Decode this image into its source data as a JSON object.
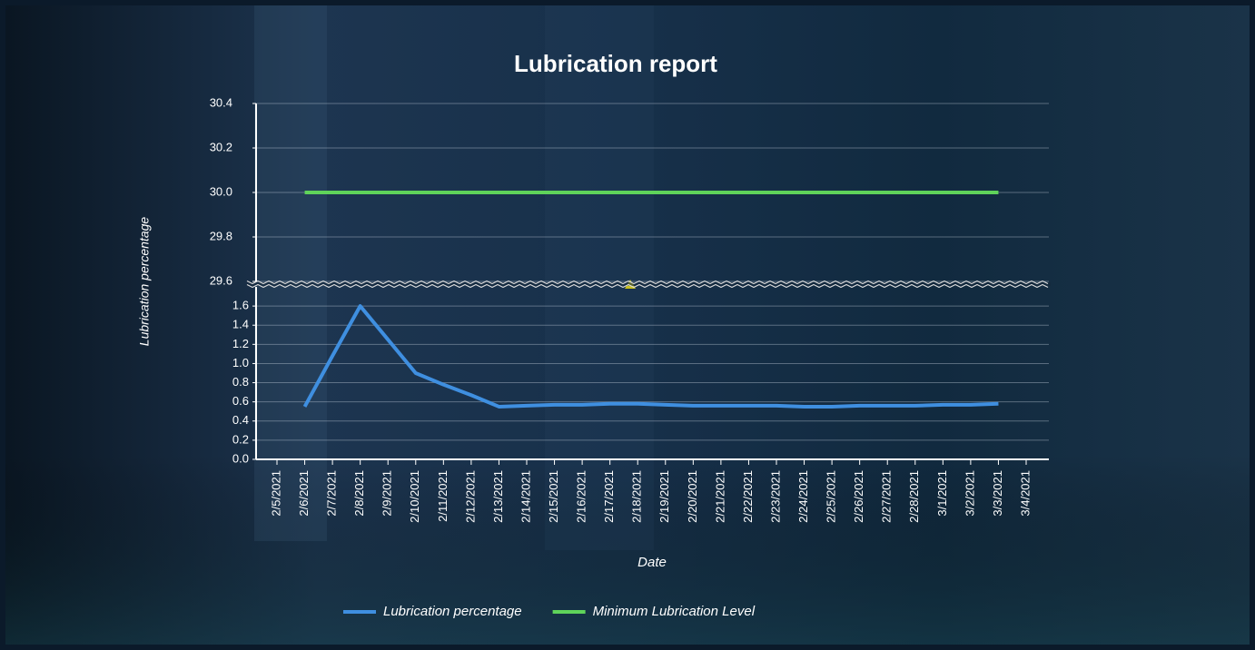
{
  "chart_data": {
    "type": "line",
    "title": "Lubrication report",
    "x_label": "Date",
    "y_label": "Lubrication percentage",
    "categories": [
      "2/5/2021",
      "2/6/2021",
      "2/7/2021",
      "2/8/2021",
      "2/9/2021",
      "2/10/2021",
      "2/11/2021",
      "2/12/2021",
      "2/13/2021",
      "2/14/2021",
      "2/15/2021",
      "2/16/2021",
      "2/17/2021",
      "2/18/2021",
      "2/19/2021",
      "2/20/2021",
      "2/21/2021",
      "2/22/2021",
      "2/23/2021",
      "2/24/2021",
      "2/25/2021",
      "2/26/2021",
      "2/27/2021",
      "2/28/2021",
      "3/1/2021",
      "3/2/2021",
      "3/3/2021",
      "3/4/2021"
    ],
    "series": [
      {
        "name": "Lubrication percentage",
        "color": "#3f8fe0",
        "values": [
          null,
          0.55,
          1.08,
          1.6,
          1.25,
          0.9,
          0.78,
          0.67,
          0.55,
          0.56,
          0.57,
          0.57,
          0.58,
          0.58,
          0.57,
          0.56,
          0.56,
          0.56,
          0.56,
          0.55,
          0.55,
          0.56,
          0.56,
          0.56,
          0.57,
          0.57,
          0.58,
          null
        ]
      },
      {
        "name": "Minimum Lubrication Level",
        "color": "#5fd35a",
        "values": [
          null,
          30,
          30,
          30,
          30,
          30,
          30,
          30,
          30,
          30,
          30,
          30,
          30,
          30,
          30,
          30,
          30,
          30,
          30,
          30,
          30,
          30,
          30,
          30,
          30,
          30,
          30,
          null
        ]
      }
    ],
    "ylim": [
      0,
      30.4
    ],
    "y_break": [
      1.8,
      29.6
    ],
    "yticks": [
      {
        "value": 0,
        "label": "0.0"
      },
      0.2,
      0.4,
      0.6,
      0.8,
      {
        "value": 1,
        "label": "1.0"
      },
      1.2,
      1.4,
      1.6,
      29.6,
      29.8,
      {
        "value": 30,
        "label": "30.0"
      },
      30.2,
      30.4
    ],
    "grid": true,
    "legend": "bottom"
  }
}
